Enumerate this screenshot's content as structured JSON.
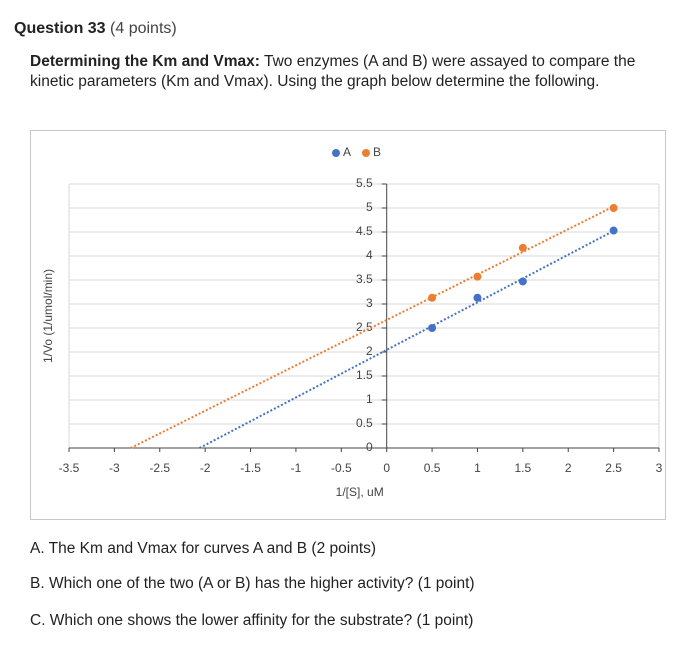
{
  "header": {
    "question": "Question 33",
    "points": "(4 points)"
  },
  "prompt": {
    "lead": "Determining the Km and Vmax:",
    "body": "Two enzymes (A and B) were assayed to compare the kinetic parameters (Km and Vmax). Using the graph below determine the following."
  },
  "chart_data": {
    "type": "scatter",
    "trendline": "linear",
    "y_label": "1/Vo (1/umol/min)",
    "x_label": "1/[S], uM",
    "xlim": [
      -3.5,
      3
    ],
    "xticks": [
      -3.5,
      -3,
      -2.5,
      -2,
      -1.5,
      -1,
      -0.5,
      0,
      0.5,
      1,
      1.5,
      2,
      2.5,
      3
    ],
    "ylim": [
      0,
      5.5
    ],
    "yticks": [
      0,
      0.5,
      1,
      1.5,
      2,
      2.5,
      3,
      3.5,
      4,
      4.5,
      5,
      5.5
    ],
    "grid": true,
    "legend": "top",
    "series": [
      {
        "name": "A",
        "color": "#4472c4",
        "x": [
          0.5,
          1,
          1.5,
          2.5
        ],
        "values": [
          2.5,
          3.13,
          3.47,
          4.53
        ]
      },
      {
        "name": "B",
        "color": "#ed7d31",
        "x": [
          0.5,
          1,
          1.5,
          2.5
        ],
        "values": [
          3.13,
          3.57,
          4.17,
          5.0
        ]
      }
    ]
  },
  "questions": [
    "A. The Km and Vmax for curves A and B (2 points)",
    "B. Which one of the two (A or B) has the higher activity? (1 point)",
    "C. Which one shows the lower affinity for the substrate? (1 point)"
  ]
}
